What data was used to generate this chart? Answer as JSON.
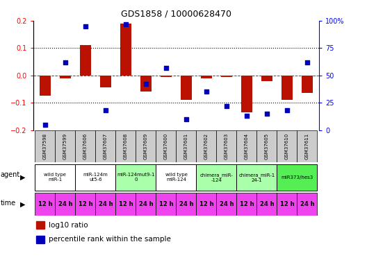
{
  "title": "GDS1858 / 10000628470",
  "samples": [
    "GSM37598",
    "GSM37599",
    "GSM37606",
    "GSM37607",
    "GSM37608",
    "GSM37609",
    "GSM37600",
    "GSM37601",
    "GSM37602",
    "GSM37603",
    "GSM37604",
    "GSM37605",
    "GSM37610",
    "GSM37611"
  ],
  "log10_ratio": [
    -0.075,
    -0.01,
    0.11,
    -0.045,
    0.19,
    -0.06,
    -0.005,
    -0.09,
    -0.01,
    -0.005,
    -0.135,
    -0.02,
    -0.09,
    -0.065
  ],
  "percentile": [
    5,
    62,
    95,
    18,
    97,
    42,
    57,
    10,
    35,
    22,
    13,
    15,
    18,
    62
  ],
  "ylim": [
    -0.2,
    0.2
  ],
  "y2lim": [
    0,
    100
  ],
  "yticks": [
    -0.2,
    -0.1,
    0.0,
    0.1,
    0.2
  ],
  "y2ticks": [
    0,
    25,
    50,
    75,
    100
  ],
  "hlines": [
    0.1,
    0.0,
    -0.1
  ],
  "agent_groups": [
    {
      "label": "wild type\nmiR-1",
      "cols": [
        0,
        1
      ],
      "color": "#ffffff"
    },
    {
      "label": "miR-124m\nut5-6",
      "cols": [
        2,
        3
      ],
      "color": "#ffffff"
    },
    {
      "label": "miR-124mut9-1\n0",
      "cols": [
        4,
        5
      ],
      "color": "#aaffaa"
    },
    {
      "label": "wild type\nmiR-124",
      "cols": [
        6,
        7
      ],
      "color": "#ffffff"
    },
    {
      "label": "chimera_miR-\n-124",
      "cols": [
        8,
        9
      ],
      "color": "#aaffaa"
    },
    {
      "label": "chimera_miR-1\n24-1",
      "cols": [
        10,
        11
      ],
      "color": "#aaffaa"
    },
    {
      "label": "miR373/hes3",
      "cols": [
        12,
        13
      ],
      "color": "#55ee55"
    }
  ],
  "time_labels": [
    "12 h",
    "24 h",
    "12 h",
    "24 h",
    "12 h",
    "24 h",
    "12 h",
    "24 h",
    "12 h",
    "24 h",
    "12 h",
    "24 h",
    "12 h",
    "24 h"
  ],
  "time_color": "#ee44ee",
  "bar_color": "#bb1100",
  "dot_color": "#0000bb",
  "bar_width": 0.55,
  "background_color": "#ffffff"
}
